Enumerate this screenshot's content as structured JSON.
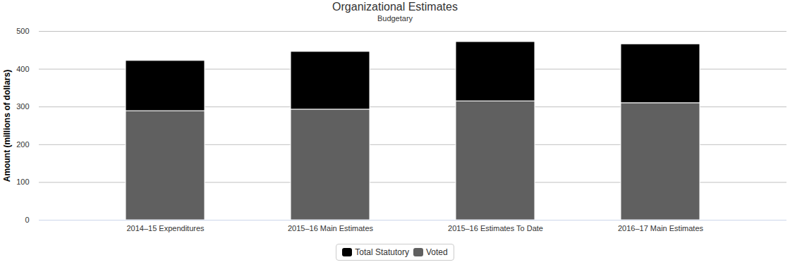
{
  "chart_data": {
    "type": "bar",
    "title": "Organizational Estimates",
    "subtitle": "Budgetary",
    "y_label": "Amount (millions of dollars)",
    "categories": [
      "2014–15 Expenditures",
      "2015–16 Main Estimates",
      "2015–16 Estimates To Date",
      "2016–17 Main Estimates"
    ],
    "series": [
      {
        "name": "Total Statutory",
        "color": "#000000",
        "values": [
          133,
          153,
          157,
          156
        ]
      },
      {
        "name": "Voted",
        "color": "#606060",
        "values": [
          289,
          293,
          315,
          310
        ]
      }
    ],
    "stacked": true,
    "ylim": [
      0,
      500
    ],
    "yticks": [
      0,
      100,
      200,
      300,
      400,
      500
    ],
    "grid": true,
    "legend": "bottom"
  }
}
